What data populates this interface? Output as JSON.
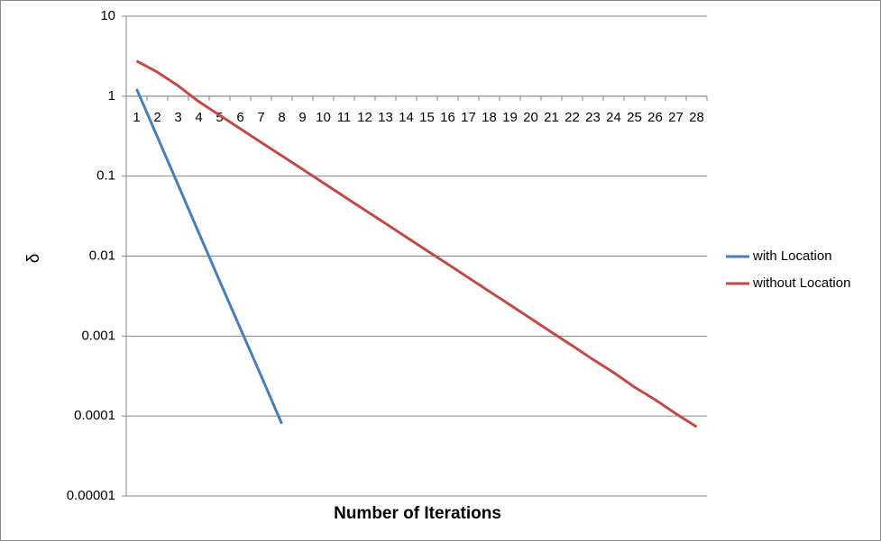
{
  "chart_data": {
    "type": "line",
    "x_label": "Number of Iterations",
    "y_label": "δ",
    "categories": [
      "1",
      "2",
      "3",
      "4",
      "5",
      "6",
      "7",
      "8",
      "9",
      "10",
      "11",
      "12",
      "13",
      "14",
      "15",
      "16",
      "17",
      "18",
      "19",
      "20",
      "21",
      "22",
      "23",
      "24",
      "25",
      "26",
      "27",
      "28"
    ],
    "series": [
      {
        "name": "with Location",
        "color": "#4a7ebb",
        "values": [
          1.23,
          0.31,
          0.078,
          0.0195,
          0.0049,
          0.00125,
          0.00032,
          8e-05,
          null,
          null,
          null,
          null,
          null,
          null,
          null,
          null,
          null,
          null,
          null,
          null,
          null,
          null,
          null,
          null,
          null,
          null,
          null,
          null
        ]
      },
      {
        "name": "without Location",
        "color": "#be4b48",
        "values": [
          2.75,
          2.0,
          1.35,
          0.855,
          0.578,
          0.392,
          0.265,
          0.18,
          0.122,
          0.0824,
          0.0557,
          0.0378,
          0.0256,
          0.0173,
          0.0117,
          0.00794,
          0.00537,
          0.00363,
          0.00246,
          0.00166,
          0.00112,
          0.00076,
          0.00051,
          0.00035,
          0.00023,
          0.00016,
          0.000107,
          7.33e-05
        ]
      }
    ],
    "ylim": [
      1e-05,
      10
    ],
    "yticks": [
      10,
      1,
      0.1,
      0.01,
      0.001,
      0.0001,
      {
        "value": 1e-05,
        "label": "0.00001"
      }
    ],
    "log_scale_y": true,
    "grid": true,
    "x_axis_crosses_at": 1,
    "legend": "right"
  }
}
